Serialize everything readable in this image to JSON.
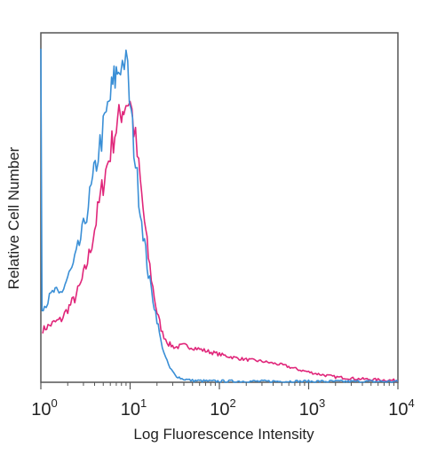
{
  "chart_data": {
    "type": "line",
    "title": "",
    "xlabel": "Log Fluorescence Intensity",
    "ylabel": "Relative Cell Number",
    "x_scale": "log",
    "xlim": [
      1,
      10000
    ],
    "ylim": [
      0,
      100
    ],
    "grid": false,
    "legend": "none",
    "x_ticks": [
      {
        "base": "10",
        "exp": "0",
        "value": 1
      },
      {
        "base": "10",
        "exp": "1",
        "value": 10
      },
      {
        "base": "10",
        "exp": "2",
        "value": 100
      },
      {
        "base": "10",
        "exp": "3",
        "value": 1000
      },
      {
        "base": "10",
        "exp": "4",
        "value": 10000
      }
    ],
    "series": [
      {
        "color": "#3a8fd6",
        "points": [
          [
            1.0,
            98
          ],
          [
            1.03,
            22
          ],
          [
            1.1,
            22
          ],
          [
            1.25,
            24
          ],
          [
            1.4,
            26
          ],
          [
            1.6,
            25
          ],
          [
            1.8,
            27
          ],
          [
            2.0,
            30
          ],
          [
            2.3,
            33
          ],
          [
            2.6,
            38
          ],
          [
            3.0,
            44
          ],
          [
            3.4,
            51
          ],
          [
            3.8,
            57
          ],
          [
            4.2,
            63
          ],
          [
            4.6,
            68
          ],
          [
            5.0,
            72
          ],
          [
            5.4,
            76
          ],
          [
            5.8,
            80
          ],
          [
            6.2,
            83
          ],
          [
            6.6,
            86
          ],
          [
            7.0,
            88
          ],
          [
            7.4,
            90
          ],
          [
            7.8,
            92
          ],
          [
            8.2,
            91
          ],
          [
            8.6,
            93
          ],
          [
            9.0,
            90
          ],
          [
            9.4,
            88
          ],
          [
            9.8,
            82
          ],
          [
            10.3,
            76
          ],
          [
            11.0,
            68
          ],
          [
            12.0,
            58
          ],
          [
            13.0,
            50
          ],
          [
            14.5,
            40
          ],
          [
            16.0,
            31
          ],
          [
            18.0,
            24
          ],
          [
            20.0,
            18
          ],
          [
            22.0,
            12
          ],
          [
            25.0,
            7
          ],
          [
            28.0,
            4
          ],
          [
            32.0,
            2
          ],
          [
            38.0,
            1
          ],
          [
            50.0,
            0.5
          ],
          [
            80.0,
            0.3
          ],
          [
            10000.0,
            0.2
          ]
        ]
      },
      {
        "color": "#e0267a",
        "points": [
          [
            1.05,
            15
          ],
          [
            1.2,
            16
          ],
          [
            1.4,
            17
          ],
          [
            1.7,
            18
          ],
          [
            2.0,
            21
          ],
          [
            2.4,
            24
          ],
          [
            2.8,
            28
          ],
          [
            3.2,
            33
          ],
          [
            3.6,
            38
          ],
          [
            4.0,
            44
          ],
          [
            4.5,
            51
          ],
          [
            5.0,
            57
          ],
          [
            5.5,
            62
          ],
          [
            6.0,
            66
          ],
          [
            6.5,
            70
          ],
          [
            7.0,
            73
          ],
          [
            7.5,
            75
          ],
          [
            8.0,
            78
          ],
          [
            8.5,
            79
          ],
          [
            9.0,
            80
          ],
          [
            9.5,
            81
          ],
          [
            10.0,
            80
          ],
          [
            10.5,
            77
          ],
          [
            11.0,
            73
          ],
          [
            12.0,
            65
          ],
          [
            13.0,
            57
          ],
          [
            14.5,
            46
          ],
          [
            16.0,
            36
          ],
          [
            18.0,
            27
          ],
          [
            20.0,
            20
          ],
          [
            23.0,
            14
          ],
          [
            27.0,
            11
          ],
          [
            32.0,
            10
          ],
          [
            40.0,
            10.5
          ],
          [
            50.0,
            10
          ],
          [
            70.0,
            9
          ],
          [
            100.0,
            8
          ],
          [
            150.0,
            7
          ],
          [
            200.0,
            6.5
          ],
          [
            300.0,
            6
          ],
          [
            500.0,
            5
          ],
          [
            800.0,
            3.5
          ],
          [
            1200.0,
            2.5
          ],
          [
            2000.0,
            1.5
          ],
          [
            3500.0,
            1
          ],
          [
            6000.0,
            0.7
          ],
          [
            10000.0,
            0.5
          ]
        ]
      }
    ]
  }
}
